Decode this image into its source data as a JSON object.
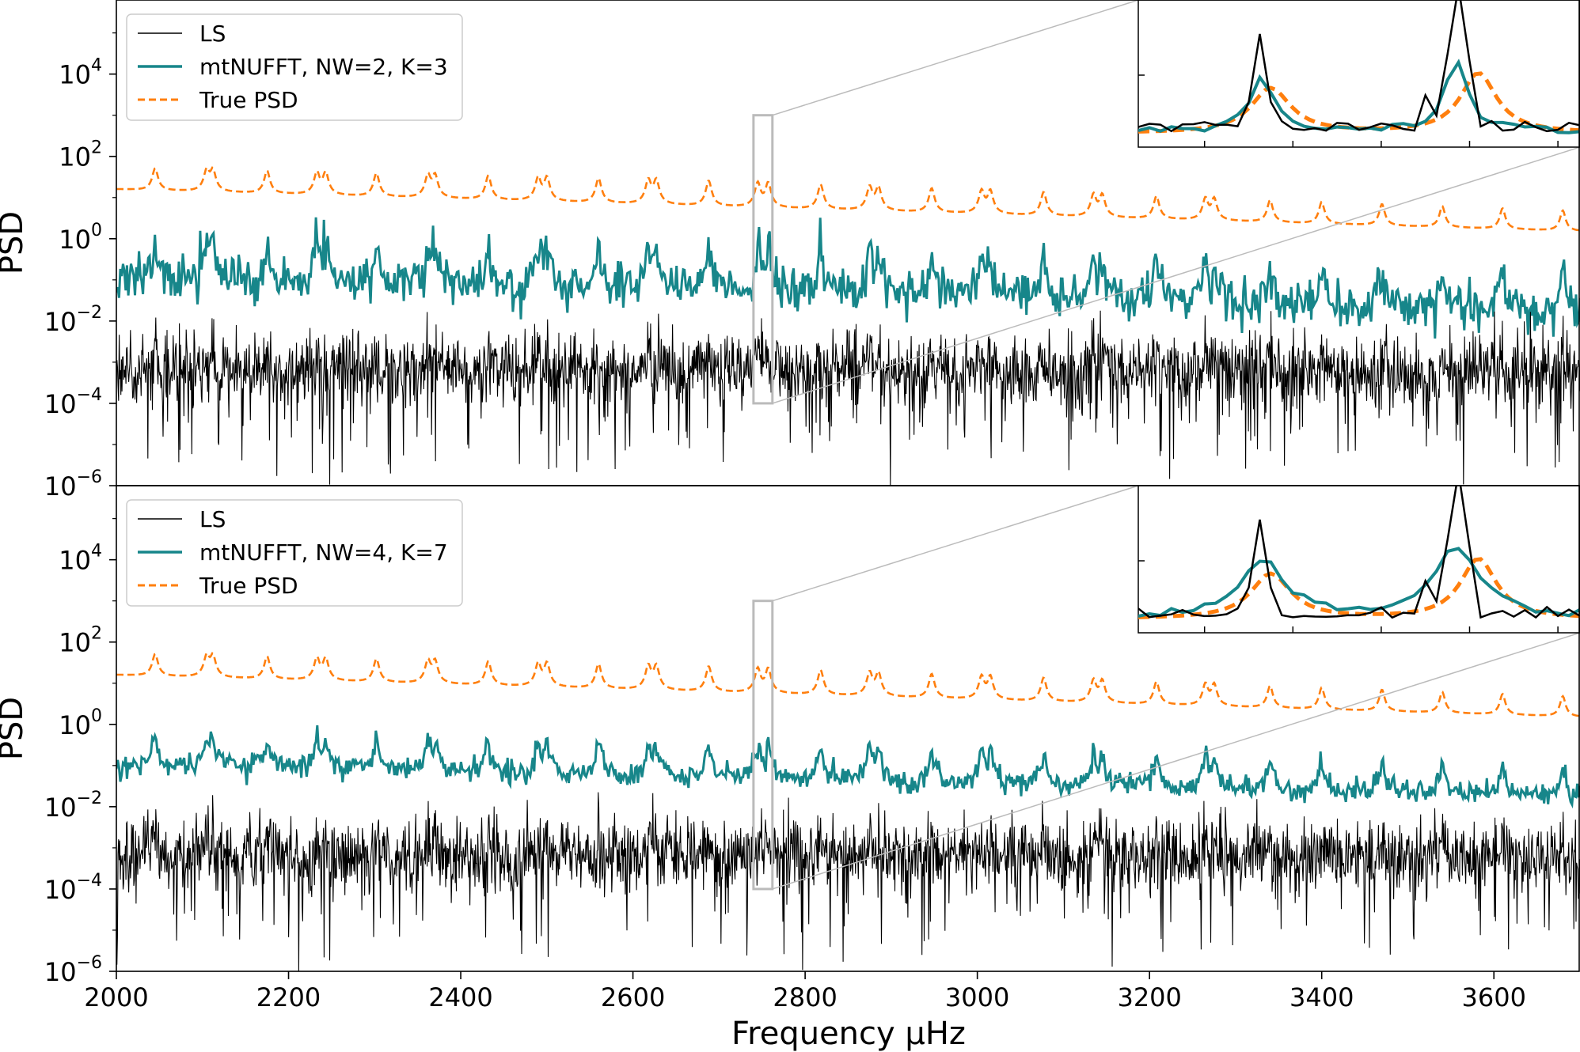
{
  "chart_data": [
    {
      "type": "line",
      "panel": "top",
      "title": "",
      "xlabel": "",
      "ylabel": "PSD",
      "xlim": [
        2000,
        3700
      ],
      "ylim_log10": [
        -6,
        5.8
      ],
      "yscale": "log",
      "yticks": [
        {
          "base": "10",
          "exp": "4",
          "value": 10000
        },
        {
          "base": "10",
          "exp": "2",
          "value": 100
        },
        {
          "base": "10",
          "exp": "0",
          "value": 1
        },
        {
          "base": "10",
          "exp": "−2",
          "value": 0.01
        },
        {
          "base": "10",
          "exp": "−4",
          "value": 0.0001
        },
        {
          "base": "10",
          "exp": "−6",
          "value": 1e-06
        }
      ],
      "legend_position": "top-left",
      "legend": [
        "LS",
        "mtNUFFT, NW=2, K=3",
        "True PSD"
      ],
      "series": [
        {
          "name": "LS",
          "style": "solid",
          "color": "#000000",
          "baseline_log10": -3.2,
          "noise_log10": 0.55,
          "peak_log10": 1.0
        },
        {
          "name": "mtNUFFT, NW=2, K=3",
          "style": "solid",
          "color": "#17868a",
          "baseline_log10": -1.0,
          "noise_log10": 0.28,
          "peak_log10": 1.2
        },
        {
          "name": "True PSD",
          "style": "dashed",
          "color": "#ff7f0e",
          "baseline_log10": 1.2,
          "peak_log10": 0.7
        }
      ],
      "mode_frequencies": [
        2045,
        2105,
        2112,
        2175,
        2233,
        2243,
        2302,
        2362,
        2370,
        2432,
        2490,
        2500,
        2560,
        2618,
        2627,
        2688,
        2745,
        2757,
        2818,
        2875,
        2885,
        2947,
        3005,
        3015,
        3077,
        3135,
        3145,
        3208,
        3265,
        3275,
        3340,
        3400,
        3470,
        3540,
        3610,
        3680
      ],
      "zoom_box": {
        "x_range": [
          2740,
          2762
        ],
        "y_range_log10": [
          -4,
          3
        ]
      },
      "inset": {
        "x_range": [
          2740,
          2762
        ],
        "legend": "none"
      }
    },
    {
      "type": "line",
      "panel": "bottom",
      "title": "",
      "xlabel": "Frequency μHz",
      "ylabel": "PSD",
      "xlim": [
        2000,
        3700
      ],
      "ylim_log10": [
        -6,
        5.8
      ],
      "yscale": "log",
      "xticks": [
        2000,
        2200,
        2400,
        2600,
        2800,
        3000,
        3200,
        3400,
        3600
      ],
      "yticks": [
        {
          "base": "10",
          "exp": "4",
          "value": 10000
        },
        {
          "base": "10",
          "exp": "2",
          "value": 100
        },
        {
          "base": "10",
          "exp": "0",
          "value": 1
        },
        {
          "base": "10",
          "exp": "−2",
          "value": 0.01
        },
        {
          "base": "10",
          "exp": "−4",
          "value": 0.0001
        },
        {
          "base": "10",
          "exp": "−6",
          "value": 1e-06
        }
      ],
      "legend_position": "top-left",
      "legend": [
        "LS",
        "mtNUFFT, NW=4, K=7",
        "True PSD"
      ],
      "series": [
        {
          "name": "LS",
          "style": "solid",
          "color": "#000000",
          "baseline_log10": -3.2,
          "noise_log10": 0.55,
          "peak_log10": 1.0
        },
        {
          "name": "mtNUFFT, NW=4, K=7",
          "style": "solid",
          "color": "#17868a",
          "baseline_log10": -1.0,
          "noise_log10": 0.14,
          "peak_log10": 0.9
        },
        {
          "name": "True PSD",
          "style": "dashed",
          "color": "#ff7f0e",
          "baseline_log10": 1.2,
          "peak_log10": 0.7
        }
      ],
      "mode_frequencies": [
        2045,
        2105,
        2112,
        2175,
        2233,
        2243,
        2302,
        2362,
        2370,
        2432,
        2490,
        2500,
        2560,
        2618,
        2627,
        2688,
        2745,
        2757,
        2818,
        2875,
        2885,
        2947,
        3005,
        3015,
        3077,
        3135,
        3145,
        3208,
        3265,
        3275,
        3340,
        3400,
        3470,
        3540,
        3610,
        3680
      ],
      "zoom_box": {
        "x_range": [
          2740,
          2762
        ],
        "y_range_log10": [
          -4,
          3
        ]
      },
      "inset": {
        "x_range": [
          2740,
          2762
        ],
        "legend": "none"
      }
    }
  ],
  "colors": {
    "ls": "#000000",
    "mt": "#17868a",
    "true": "#ff7f0e",
    "zoom": "#bbbbbb"
  }
}
